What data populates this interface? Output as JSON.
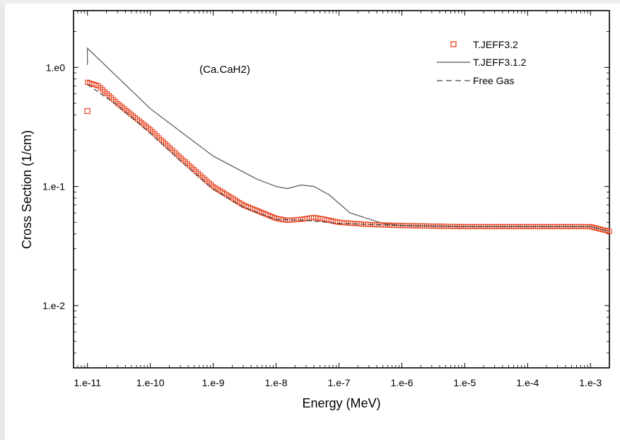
{
  "chart_data": {
    "type": "scatter",
    "title": "",
    "annotation": "(Ca.CaH2)",
    "xlabel": "Energy (MeV)",
    "ylabel": "Cross Section (1/cm)",
    "xscale": "log",
    "yscale": "log",
    "xlim": [
      6e-12,
      0.002
    ],
    "ylim": [
      0.003,
      3.0
    ],
    "x_ticks": [
      1e-11,
      1e-10,
      1e-09,
      1e-08,
      1e-07,
      1e-06,
      1e-05,
      0.0001,
      0.001
    ],
    "x_tick_labels": [
      "1.e-11",
      "1.e-10",
      "1.e-9",
      "1.e-8",
      "1.e-7",
      "1.e-6",
      "1.e-5",
      "1.e-4",
      "1.e-3"
    ],
    "y_ticks": [
      0.01,
      0.1,
      1.0
    ],
    "y_tick_labels": [
      "1.e-2",
      "1.e-1",
      "1.e0"
    ],
    "legend_position": "top-right",
    "grid": false,
    "series": [
      {
        "name": "T.JEFF3.2",
        "style": "markers",
        "marker": "open-square",
        "color": "#e8401c",
        "x": [
          1e-11,
          1.5e-11,
          3e-11,
          1e-10,
          3e-10,
          1e-09,
          3e-09,
          1e-08,
          1.5e-08,
          2.5e-08,
          4e-08,
          6e-08,
          1e-07,
          3e-07,
          1e-06,
          1e-05,
          0.0001,
          0.001,
          0.002
        ],
        "y": [
          0.75,
          0.7,
          0.5,
          0.3,
          0.175,
          0.1,
          0.07,
          0.054,
          0.052,
          0.053,
          0.055,
          0.053,
          0.05,
          0.048,
          0.047,
          0.046,
          0.046,
          0.046,
          0.042
        ],
        "outliers": {
          "x": [
            1e-11
          ],
          "y": [
            0.43
          ]
        }
      },
      {
        "name": "T.JEFF3.1.2",
        "style": "solid",
        "color": "#555555",
        "x": [
          1e-11,
          1e-11,
          1e-10,
          1e-09,
          5e-09,
          1e-08,
          1.5e-08,
          2.5e-08,
          4e-08,
          7e-08,
          1.5e-07,
          5e-07,
          1e-06,
          1e-05,
          0.0001,
          0.001,
          0.002
        ],
        "y": [
          1.05,
          1.45,
          0.45,
          0.18,
          0.115,
          0.1,
          0.096,
          0.103,
          0.1,
          0.085,
          0.06,
          0.049,
          0.047,
          0.046,
          0.046,
          0.046,
          0.042
        ]
      },
      {
        "name": "Free Gas",
        "style": "dashed",
        "color": "#444444",
        "x": [
          1e-11,
          3e-11,
          1e-10,
          3e-10,
          1e-09,
          3e-09,
          1e-08,
          3e-08,
          1e-07,
          1e-06,
          1e-05,
          0.0001,
          0.001,
          0.002
        ],
        "y": [
          0.72,
          0.48,
          0.28,
          0.165,
          0.095,
          0.067,
          0.053,
          0.052,
          0.049,
          0.047,
          0.046,
          0.046,
          0.046,
          0.042
        ]
      }
    ]
  }
}
